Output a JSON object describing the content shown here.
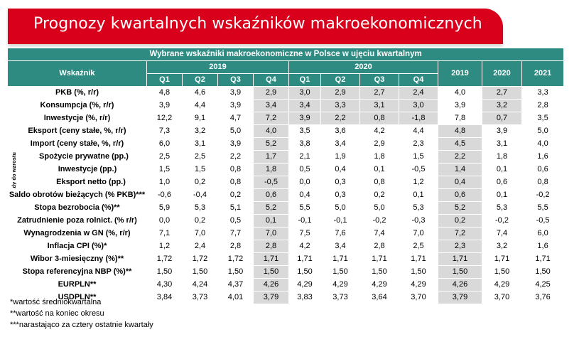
{
  "banner": {
    "title": "Prognozy kwartalnych wskaźników makroekonomicznych"
  },
  "table": {
    "title": "Wybrane wskaźniki makroekonomiczne w Polsce w ujęciu kwartalnym",
    "indicator_header": "Wskaźnik",
    "year_groups": [
      "2019",
      "2020"
    ],
    "quarters": [
      "Q1",
      "Q2",
      "Q3",
      "Q4",
      "Q1",
      "Q2",
      "Q3",
      "Q4"
    ],
    "annual_years": [
      "2019",
      "2020",
      "2021"
    ],
    "side_label": "Wkłady do wzrostu PKB",
    "rows": [
      {
        "label": "PKB (%, r/r)",
        "cells": [
          "4,8",
          "4,6",
          "3,9",
          "2,9",
          "3,0",
          "2,9",
          "2,7",
          "2,4",
          "4,0",
          "2,7",
          "3,3"
        ]
      },
      {
        "label": "Konsumpcja (%, r/r)",
        "cells": [
          "3,9",
          "4,4",
          "3,9",
          "3,4",
          "3,4",
          "3,3",
          "3,1",
          "3,0",
          "3,9",
          "3,2",
          "2,8"
        ]
      },
      {
        "label": "Inwestycje (%, r/r)",
        "cells": [
          "12,2",
          "9,1",
          "4,7",
          "7,2",
          "3,9",
          "2,2",
          "0,8",
          "-1,8",
          "7,8",
          "0,7",
          "3,5"
        ]
      },
      {
        "label": "Eksport (ceny stałe, %, r/r)",
        "cells": [
          "7,3",
          "3,2",
          "5,0",
          "4,0",
          "3,5",
          "3,6",
          "4,2",
          "4,4",
          "4,8",
          "3,9",
          "5,0"
        ]
      },
      {
        "label": "Import (ceny stałe, %, r/r)",
        "cells": [
          "6,0",
          "3,1",
          "3,9",
          "5,2",
          "3,8",
          "3,4",
          "2,9",
          "2,3",
          "4,5",
          "3,1",
          "4,0"
        ]
      },
      {
        "label": "Spożycie prywatne (pp.)",
        "cells": [
          "2,5",
          "2,5",
          "2,2",
          "1,7",
          "2,1",
          "1,9",
          "1,8",
          "1,5",
          "2,2",
          "1,8",
          "1,6"
        ]
      },
      {
        "label": "Inwestycje (pp.)",
        "cells": [
          "1,5",
          "1,5",
          "0,8",
          "1,8",
          "0,5",
          "0,4",
          "0,1",
          "-0,5",
          "1,4",
          "0,1",
          "0,6"
        ]
      },
      {
        "label": "Eksport netto (pp.)",
        "cells": [
          "1,0",
          "0,2",
          "0,8",
          "-0,5",
          "0,0",
          "0,3",
          "0,8",
          "1,2",
          "0,4",
          "0,6",
          "0,8"
        ]
      },
      {
        "label": "Saldo obrotów bieżących (% PKB)***",
        "cells": [
          "-0,6",
          "-0,4",
          "0,2",
          "0,6",
          "0,4",
          "0,3",
          "0,2",
          "0,1",
          "0,6",
          "0,1",
          "-0,2"
        ]
      },
      {
        "label": "Stopa bezrobocia (%)**",
        "cells": [
          "5,9",
          "5,3",
          "5,1",
          "5,2",
          "5,5",
          "5,0",
          "5,0",
          "5,3",
          "5,2",
          "5,3",
          "5,5"
        ]
      },
      {
        "label": "Zatrudnienie poza rolnict. (% r/r)",
        "cells": [
          "0,0",
          "0,2",
          "0,5",
          "0,1",
          "-0,1",
          "-0,1",
          "-0,2",
          "-0,3",
          "0,2",
          "-0,2",
          "-0,5"
        ]
      },
      {
        "label": "Wynagrodzenia w GN (%, r/r)",
        "cells": [
          "7,1",
          "7,0",
          "7,7",
          "7,0",
          "7,5",
          "7,6",
          "7,4",
          "7,0",
          "7,2",
          "7,4",
          "6,0"
        ]
      },
      {
        "label": "Inflacja CPI (%)*",
        "cells": [
          "1,2",
          "2,4",
          "2,8",
          "2,8",
          "4,2",
          "3,4",
          "2,8",
          "2,5",
          "2,3",
          "3,2",
          "1,6"
        ]
      },
      {
        "label": "Wibor 3-miesięczny (%)**",
        "cells": [
          "1,72",
          "1,72",
          "1,72",
          "1,71",
          "1,71",
          "1,71",
          "1,71",
          "1,71",
          "1,71",
          "1,71",
          "1,71"
        ]
      },
      {
        "label": "Stopa referencyjna NBP (%)**",
        "cells": [
          "1,50",
          "1,50",
          "1,50",
          "1,50",
          "1,50",
          "1,50",
          "1,50",
          "1,50",
          "1,50",
          "1,50",
          "1,50"
        ]
      },
      {
        "label": "EURPLN**",
        "cells": [
          "4,30",
          "4,24",
          "4,37",
          "4,26",
          "4,29",
          "4,29",
          "4,29",
          "4,29",
          "4,26",
          "4,29",
          "4,25"
        ]
      },
      {
        "label": "USDPLN**",
        "cells": [
          "3,84",
          "3,73",
          "4,01",
          "3,79",
          "3,83",
          "3,73",
          "3,64",
          "3,70",
          "3,79",
          "3,70",
          "3,76"
        ]
      }
    ]
  },
  "notes": [
    "*wartość średniokwartalna",
    "**wartość na koniec okresu",
    "***narastająco za cztery ostatnie kwartały"
  ],
  "colors": {
    "banner": "#d9001b",
    "header": "#2e8b82",
    "shade": "#d9d9d9"
  }
}
